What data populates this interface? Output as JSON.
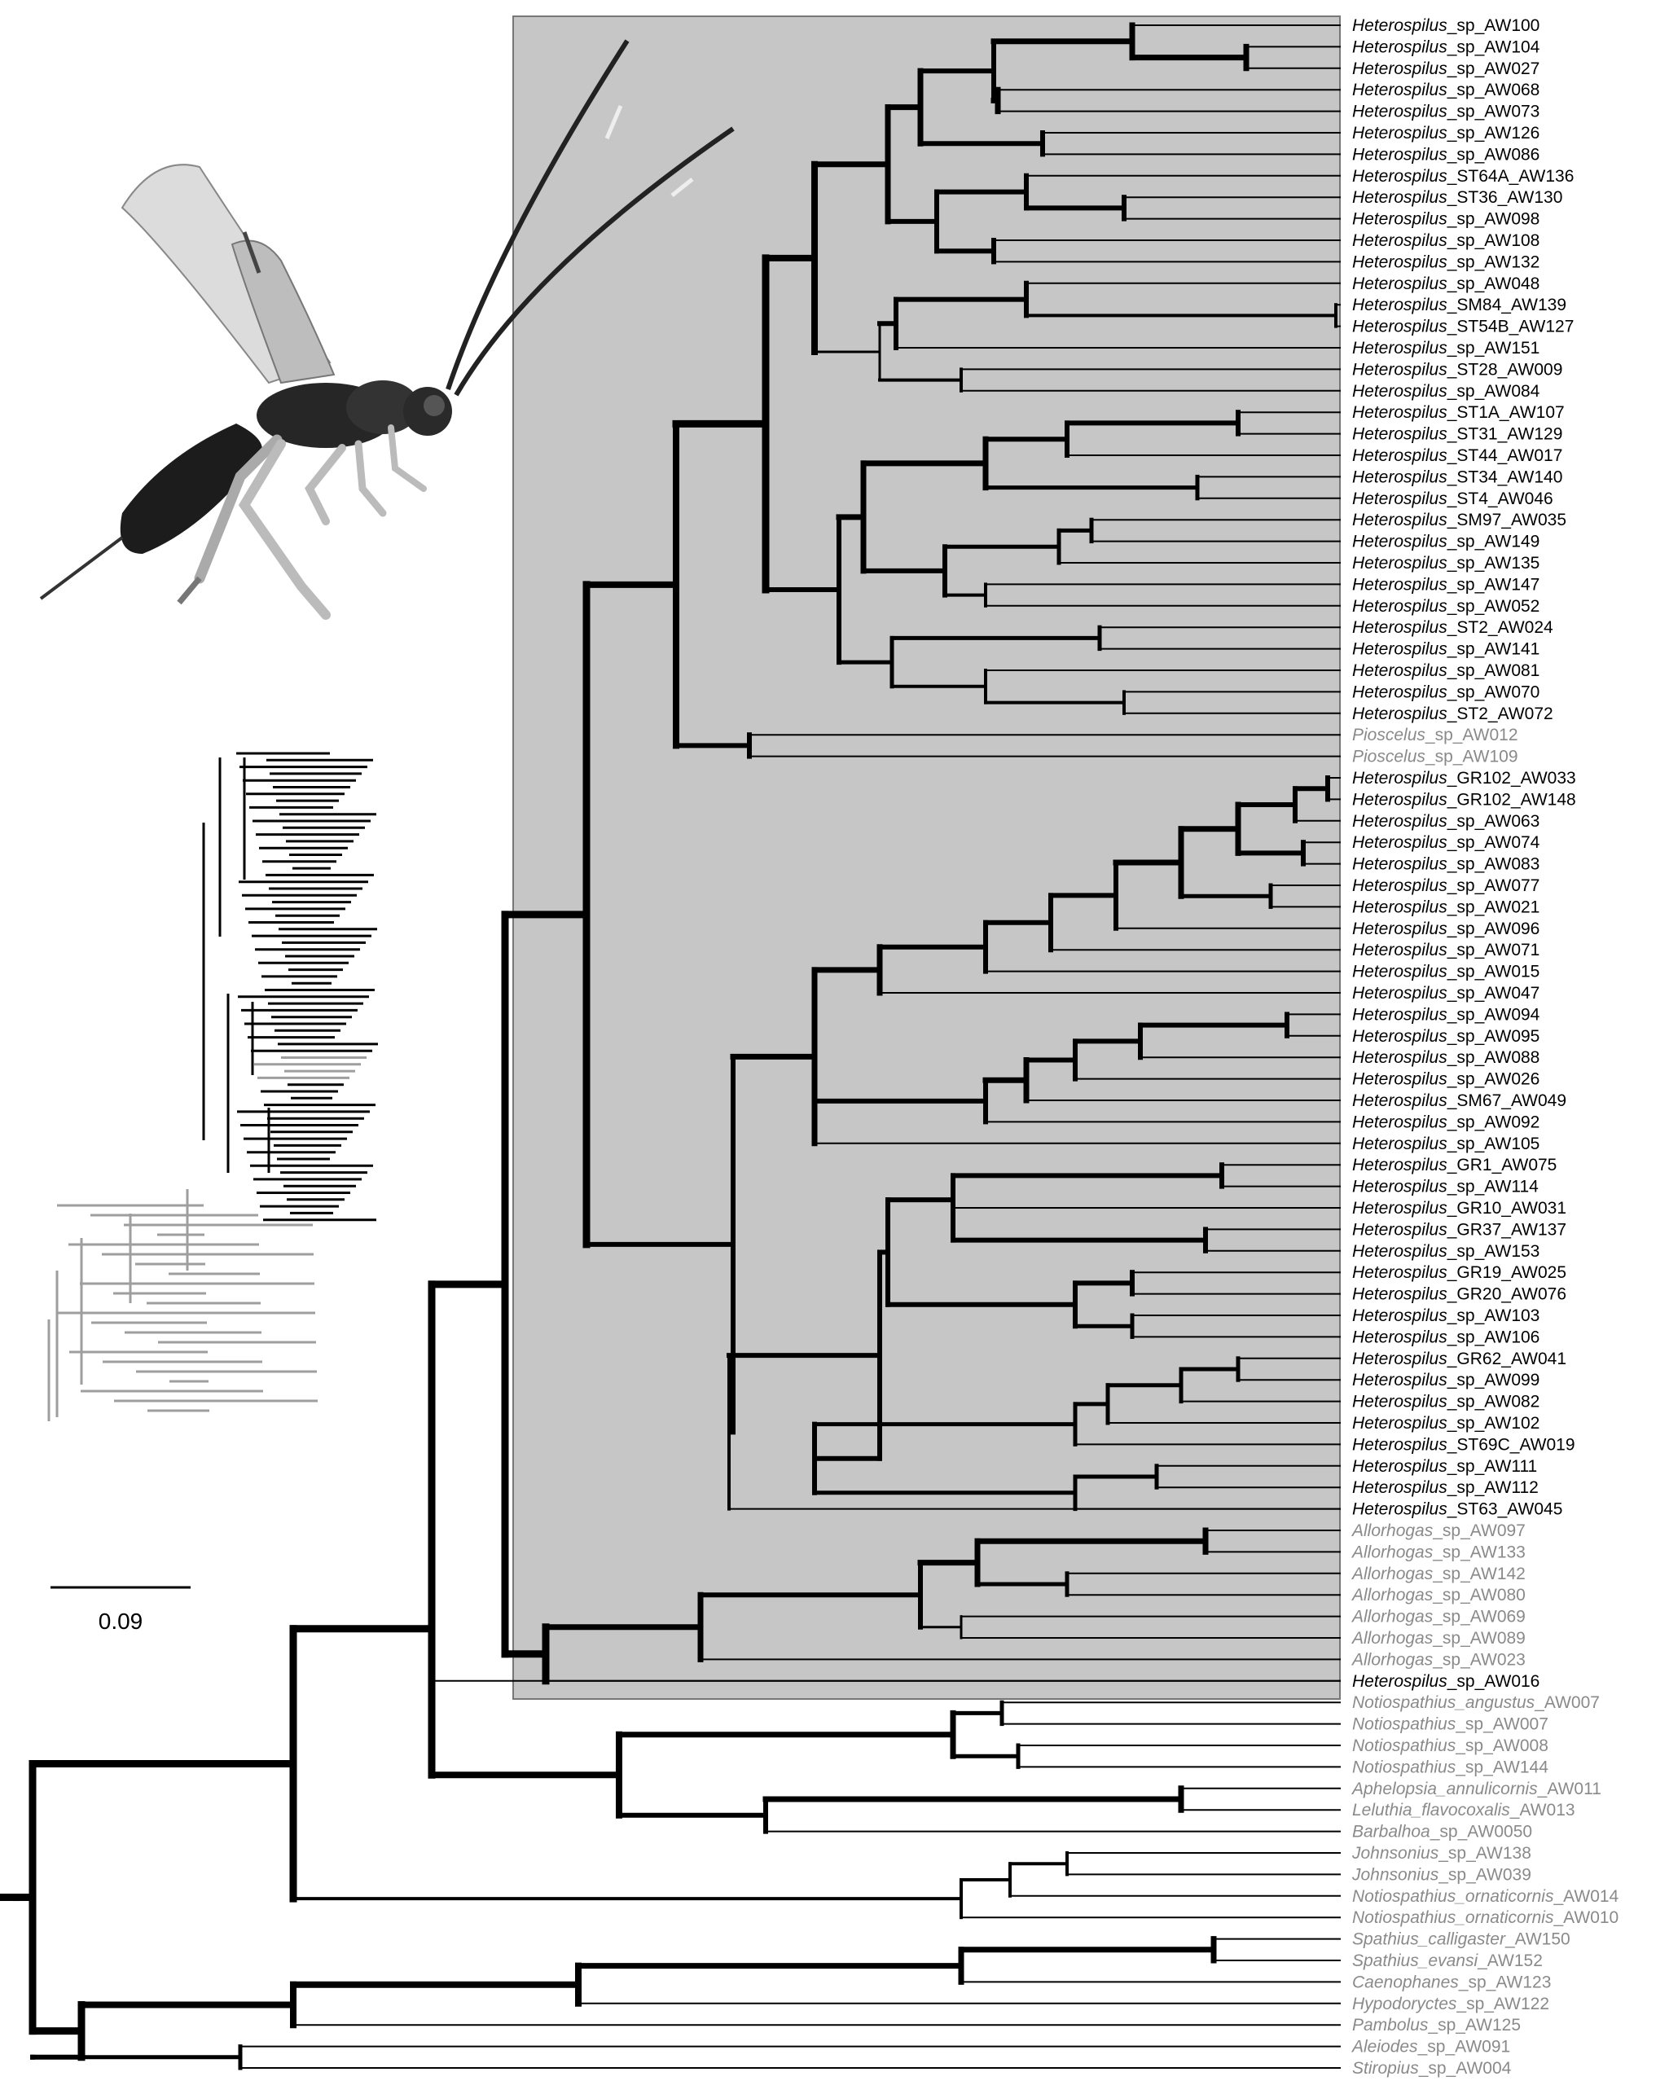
{
  "scale_bar_label": "0.09",
  "colors": {
    "ingroup_box": "#c6c6c6",
    "focal_taxon": "#000000",
    "outgroup_taxon": "#8a8a8a",
    "branch": "#000000",
    "inset_gray": "#9e9e9e"
  },
  "figure_elements": {
    "photo": "wasp-photo",
    "inset_tree": "inset-tree",
    "highlight": "ingroup-box"
  },
  "tips": [
    {
      "genus": "Heterospilus",
      "rest": "_sp_AW100",
      "color": "black"
    },
    {
      "genus": "Heterospilus",
      "rest": "_sp_AW104",
      "color": "black"
    },
    {
      "genus": "Heterospilus",
      "rest": "_sp_AW027",
      "color": "black"
    },
    {
      "genus": "Heterospilus",
      "rest": "_sp_AW068",
      "color": "black"
    },
    {
      "genus": "Heterospilus",
      "rest": "_sp_AW073",
      "color": "black"
    },
    {
      "genus": "Heterospilus",
      "rest": "_sp_AW126",
      "color": "black"
    },
    {
      "genus": "Heterospilus",
      "rest": "_sp_AW086",
      "color": "black"
    },
    {
      "genus": "Heterospilus",
      "rest": "_ST64A_AW136",
      "color": "black"
    },
    {
      "genus": "Heterospilus",
      "rest": "_ST36_AW130",
      "color": "black"
    },
    {
      "genus": "Heterospilus",
      "rest": "_sp_AW098",
      "color": "black"
    },
    {
      "genus": "Heterospilus",
      "rest": "_sp_AW108",
      "color": "black"
    },
    {
      "genus": "Heterospilus",
      "rest": "_sp_AW132",
      "color": "black"
    },
    {
      "genus": "Heterospilus",
      "rest": "_sp_AW048",
      "color": "black"
    },
    {
      "genus": "Heterospilus",
      "rest": "_SM84_AW139",
      "color": "black"
    },
    {
      "genus": "Heterospilus",
      "rest": "_ST54B_AW127",
      "color": "black"
    },
    {
      "genus": "Heterospilus",
      "rest": "_sp_AW151",
      "color": "black"
    },
    {
      "genus": "Heterospilus",
      "rest": "_ST28_AW009",
      "color": "black"
    },
    {
      "genus": "Heterospilus",
      "rest": "_sp_AW084",
      "color": "black"
    },
    {
      "genus": "Heterospilus",
      "rest": "_ST1A_AW107",
      "color": "black"
    },
    {
      "genus": "Heterospilus",
      "rest": "_ST31_AW129",
      "color": "black"
    },
    {
      "genus": "Heterospilus",
      "rest": "_ST44_AW017",
      "color": "black"
    },
    {
      "genus": "Heterospilus",
      "rest": "_ST34_AW140",
      "color": "black"
    },
    {
      "genus": "Heterospilus",
      "rest": "_ST4_AW046",
      "color": "black"
    },
    {
      "genus": "Heterospilus",
      "rest": "_SM97_AW035",
      "color": "black"
    },
    {
      "genus": "Heterospilus",
      "rest": "_sp_AW149",
      "color": "black"
    },
    {
      "genus": "Heterospilus",
      "rest": "_sp_AW135",
      "color": "black"
    },
    {
      "genus": "Heterospilus",
      "rest": "_sp_AW147",
      "color": "black"
    },
    {
      "genus": "Heterospilus",
      "rest": "_sp_AW052",
      "color": "black"
    },
    {
      "genus": "Heterospilus",
      "rest": "_ST2_AW024",
      "color": "black"
    },
    {
      "genus": "Heterospilus",
      "rest": "_sp_AW141",
      "color": "black"
    },
    {
      "genus": "Heterospilus",
      "rest": "_sp_AW081",
      "color": "black"
    },
    {
      "genus": "Heterospilus",
      "rest": "_sp_AW070",
      "color": "black"
    },
    {
      "genus": "Heterospilus",
      "rest": "_ST2_AW072",
      "color": "black"
    },
    {
      "genus": "Pioscelus",
      "rest": "_sp_AW012",
      "color": "gray"
    },
    {
      "genus": "Pioscelus",
      "rest": "_sp_AW109",
      "color": "gray"
    },
    {
      "genus": "Heterospilus",
      "rest": "_GR102_AW033",
      "color": "black"
    },
    {
      "genus": "Heterospilus",
      "rest": "_GR102_AW148",
      "color": "black"
    },
    {
      "genus": "Heterospilus",
      "rest": "_sp_AW063",
      "color": "black"
    },
    {
      "genus": "Heterospilus",
      "rest": "_sp_AW074",
      "color": "black"
    },
    {
      "genus": "Heterospilus",
      "rest": "_sp_AW083",
      "color": "black"
    },
    {
      "genus": "Heterospilus",
      "rest": "_sp_AW077",
      "color": "black"
    },
    {
      "genus": "Heterospilus",
      "rest": "_sp_AW021",
      "color": "black"
    },
    {
      "genus": "Heterospilus",
      "rest": "_sp_AW096",
      "color": "black"
    },
    {
      "genus": "Heterospilus",
      "rest": "_sp_AW071",
      "color": "black"
    },
    {
      "genus": "Heterospilus",
      "rest": "_sp_AW015",
      "color": "black"
    },
    {
      "genus": "Heterospilus",
      "rest": "_sp_AW047",
      "color": "black"
    },
    {
      "genus": "Heterospilus",
      "rest": "_sp_AW094",
      "color": "black"
    },
    {
      "genus": "Heterospilus",
      "rest": "_sp_AW095",
      "color": "black"
    },
    {
      "genus": "Heterospilus",
      "rest": "_sp_AW088",
      "color": "black"
    },
    {
      "genus": "Heterospilus",
      "rest": "_sp_AW026",
      "color": "black"
    },
    {
      "genus": "Heterospilus",
      "rest": "_SM67_AW049",
      "color": "black"
    },
    {
      "genus": "Heterospilus",
      "rest": "_sp_AW092",
      "color": "black"
    },
    {
      "genus": "Heterospilus",
      "rest": "_sp_AW105",
      "color": "black"
    },
    {
      "genus": "Heterospilus",
      "rest": "_GR1_AW075",
      "color": "black"
    },
    {
      "genus": "Heterospilus",
      "rest": "_sp_AW114",
      "color": "black"
    },
    {
      "genus": "Heterospilus",
      "rest": "_GR10_AW031",
      "color": "black"
    },
    {
      "genus": "Heterospilus",
      "rest": "_GR37_AW137",
      "color": "black"
    },
    {
      "genus": "Heterospilus",
      "rest": "_sp_AW153",
      "color": "black"
    },
    {
      "genus": "Heterospilus",
      "rest": "_GR19_AW025",
      "color": "black"
    },
    {
      "genus": "Heterospilus",
      "rest": "_GR20_AW076",
      "color": "black"
    },
    {
      "genus": "Heterospilus",
      "rest": "_sp_AW103",
      "color": "black"
    },
    {
      "genus": "Heterospilus",
      "rest": "_sp_AW106",
      "color": "black"
    },
    {
      "genus": "Heterospilus",
      "rest": "_GR62_AW041",
      "color": "black"
    },
    {
      "genus": "Heterospilus",
      "rest": "_sp_AW099",
      "color": "black"
    },
    {
      "genus": "Heterospilus",
      "rest": "_sp_AW082",
      "color": "black"
    },
    {
      "genus": "Heterospilus",
      "rest": "_sp_AW102",
      "color": "black"
    },
    {
      "genus": "Heterospilus",
      "rest": "_ST69C_AW019",
      "color": "black"
    },
    {
      "genus": "Heterospilus",
      "rest": "_sp_AW111",
      "color": "black"
    },
    {
      "genus": "Heterospilus",
      "rest": "_sp_AW112",
      "color": "black"
    },
    {
      "genus": "Heterospilus",
      "rest": "_ST63_AW045",
      "color": "black"
    },
    {
      "genus": "Allorhogas",
      "rest": "_sp_AW097",
      "color": "gray"
    },
    {
      "genus": "Allorhogas",
      "rest": "_sp_AW133",
      "color": "gray"
    },
    {
      "genus": "Allorhogas",
      "rest": "_sp_AW142",
      "color": "gray"
    },
    {
      "genus": "Allorhogas",
      "rest": "_sp_AW080",
      "color": "gray"
    },
    {
      "genus": "Allorhogas",
      "rest": "_sp_AW069",
      "color": "gray"
    },
    {
      "genus": "Allorhogas",
      "rest": "_sp_AW089",
      "color": "gray"
    },
    {
      "genus": "Allorhogas",
      "rest": "_sp_AW023",
      "color": "gray"
    },
    {
      "genus": "Heterospilus",
      "rest": "_sp_AW016",
      "color": "black"
    },
    {
      "genus": "Notiospathius_angustus",
      "rest": "_AW007",
      "color": "gray"
    },
    {
      "genus": "Notiospathius",
      "rest": "_sp_AW007",
      "color": "gray"
    },
    {
      "genus": "Notiospathius",
      "rest": "_sp_AW008",
      "color": "gray"
    },
    {
      "genus": "Notiospathius",
      "rest": "_sp_AW144",
      "color": "gray"
    },
    {
      "genus": "Aphelopsia_annulicornis",
      "rest": "_AW011",
      "color": "gray"
    },
    {
      "genus": "Leluthia_flavocoxalis",
      "rest": "_AW013",
      "color": "gray"
    },
    {
      "genus": "Barbalhoa",
      "rest": "_sp_AW0050",
      "color": "gray"
    },
    {
      "genus": "Johnsonius",
      "rest": "_sp_AW138",
      "color": "gray"
    },
    {
      "genus": "Johnsonius",
      "rest": "_sp_AW039",
      "color": "gray"
    },
    {
      "genus": "Notiospathius_ornaticornis",
      "rest": "_AW014",
      "color": "gray"
    },
    {
      "genus": "Notiospathius_ornaticornis",
      "rest": "_AW010",
      "color": "gray"
    },
    {
      "genus": "Spathius_calligaster",
      "rest": "_AW150",
      "color": "gray"
    },
    {
      "genus": "Spathius_evansi",
      "rest": "_AW152",
      "color": "gray"
    },
    {
      "genus": "Caenophanes",
      "rest": "_sp_AW123",
      "color": "gray"
    },
    {
      "genus": "Hypodoryctes",
      "rest": "_sp_AW122",
      "color": "gray"
    },
    {
      "genus": "Pambolus",
      "rest": "_sp_AW125",
      "color": "gray"
    },
    {
      "genus": "Aleiodes",
      "rest": "_sp_AW091",
      "color": "gray"
    },
    {
      "genus": "Stiropius",
      "rest": "_sp_AW004",
      "color": "gray"
    }
  ]
}
